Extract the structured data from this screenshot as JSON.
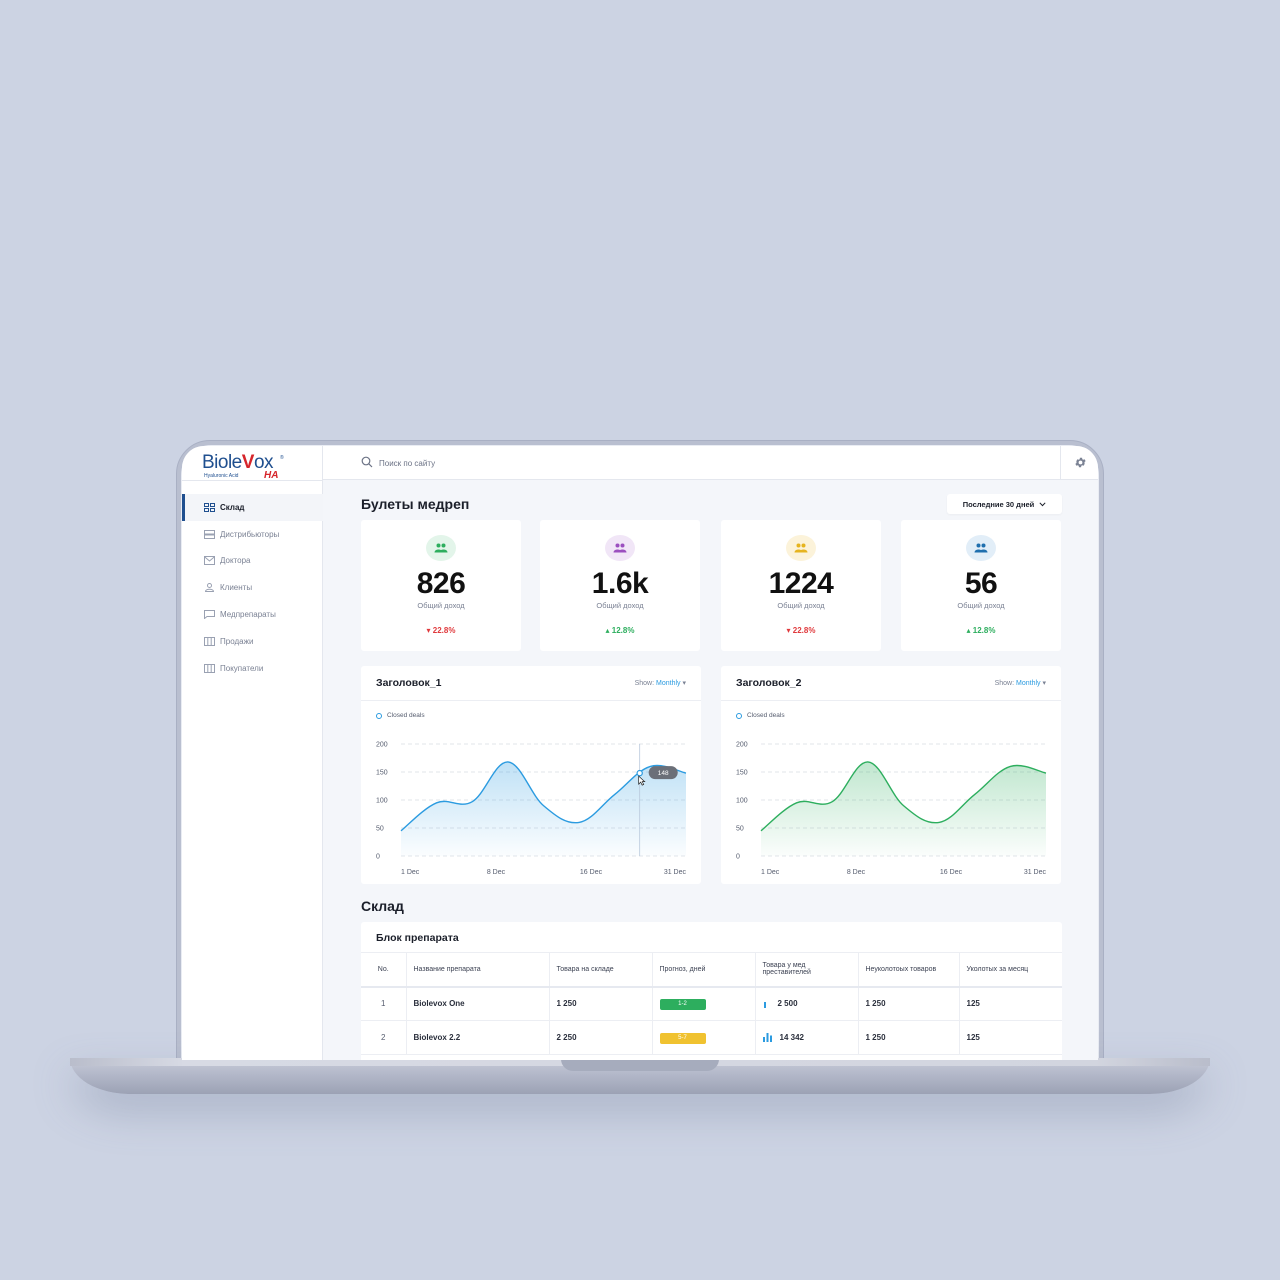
{
  "logo": {
    "brand_a": "Biole",
    "brand_v": "V",
    "brand_b": "ox",
    "subtitle": "Hyaluronic Acid",
    "suffix": "HA",
    "tm": "®"
  },
  "search": {
    "placeholder": "Поиск по сайту",
    "icon": "search-icon"
  },
  "header": {
    "settings_icon": "gear-icon"
  },
  "sidebar": {
    "items": [
      {
        "label": "Склад",
        "icon": "grid-icon",
        "active": true
      },
      {
        "label": "Дистрибьюторы",
        "icon": "server-icon",
        "active": false
      },
      {
        "label": "Доктора",
        "icon": "mail-icon",
        "active": false
      },
      {
        "label": "Клиенты",
        "icon": "user-icon",
        "active": false
      },
      {
        "label": "Медпрепараты",
        "icon": "chat-icon",
        "active": false
      },
      {
        "label": "Продажи",
        "icon": "columns-icon",
        "active": false
      },
      {
        "label": "Покупатели",
        "icon": "columns-icon",
        "active": false
      }
    ]
  },
  "page": {
    "title": "Булеты медреп",
    "period": "Последние 30 дней"
  },
  "stats": [
    {
      "value": "826",
      "label": "Общий доход",
      "change": "22.8%",
      "direction": "down",
      "color": "#2dae5e",
      "bg": "#e3f5ea"
    },
    {
      "value": "1.6k",
      "label": "Общий доход",
      "change": "12.8%",
      "direction": "up",
      "color": "#9b4fbf",
      "bg": "#f1e6f7"
    },
    {
      "value": "1224",
      "label": "Общий доход",
      "change": "22.8%",
      "direction": "down",
      "color": "#e6b41f",
      "bg": "#fcf3da"
    },
    {
      "value": "56",
      "label": "Общий доход",
      "change": "12.8%",
      "direction": "up",
      "color": "#1f6fae",
      "bg": "#e2eef8"
    }
  ],
  "charts": {
    "show_label": "Show:",
    "show_value": "Monthly"
  },
  "chart_data": [
    {
      "type": "area",
      "title": "Заголовок_1",
      "legend": "Closed deals",
      "color": "#2b9be0",
      "y_ticks": [
        "200",
        "150",
        "100",
        "50",
        "0"
      ],
      "x_ticks": [
        "1 Dec",
        "8 Dec",
        "16 Dec",
        "31 Dec"
      ],
      "ylim": [
        0,
        200
      ],
      "x": [
        0,
        1,
        2,
        3,
        4,
        5,
        6,
        7,
        8
      ],
      "values": [
        45,
        95,
        97,
        168,
        90,
        60,
        110,
        160,
        148
      ],
      "tooltip": {
        "x_index": 6.7,
        "value": "148"
      },
      "grid": true
    },
    {
      "type": "area",
      "title": "Заголовок_2",
      "legend": "Closed deals",
      "color": "#2dae5e",
      "y_ticks": [
        "200",
        "150",
        "100",
        "50",
        "0"
      ],
      "x_ticks": [
        "1 Dec",
        "8 Dec",
        "16 Dec",
        "31 Dec"
      ],
      "ylim": [
        0,
        200
      ],
      "x": [
        0,
        1,
        2,
        3,
        4,
        5,
        6,
        7,
        8
      ],
      "values": [
        45,
        95,
        97,
        168,
        90,
        60,
        110,
        160,
        148
      ],
      "grid": true
    }
  ],
  "warehouse": {
    "title": "Склад",
    "block_title": "Блок препарата",
    "columns": [
      "No.",
      "Название препарата",
      "Товара на складе",
      "Прогноз, дней",
      "Товара у мед преставителей",
      "Неуколотоых товаров",
      "Уколотых за месяц"
    ],
    "rows": [
      {
        "no": "1",
        "name": "Biolevox One",
        "stock": "1 250",
        "forecast": "1-2",
        "forecast_color": "green",
        "reps": "2 500",
        "unused": "1 250",
        "used": "125"
      },
      {
        "no": "2",
        "name": "Biolevox 2.2",
        "stock": "2 250",
        "forecast": "5-7",
        "forecast_color": "yellow",
        "reps": "14 342",
        "unused": "1 250",
        "used": "125"
      }
    ]
  }
}
